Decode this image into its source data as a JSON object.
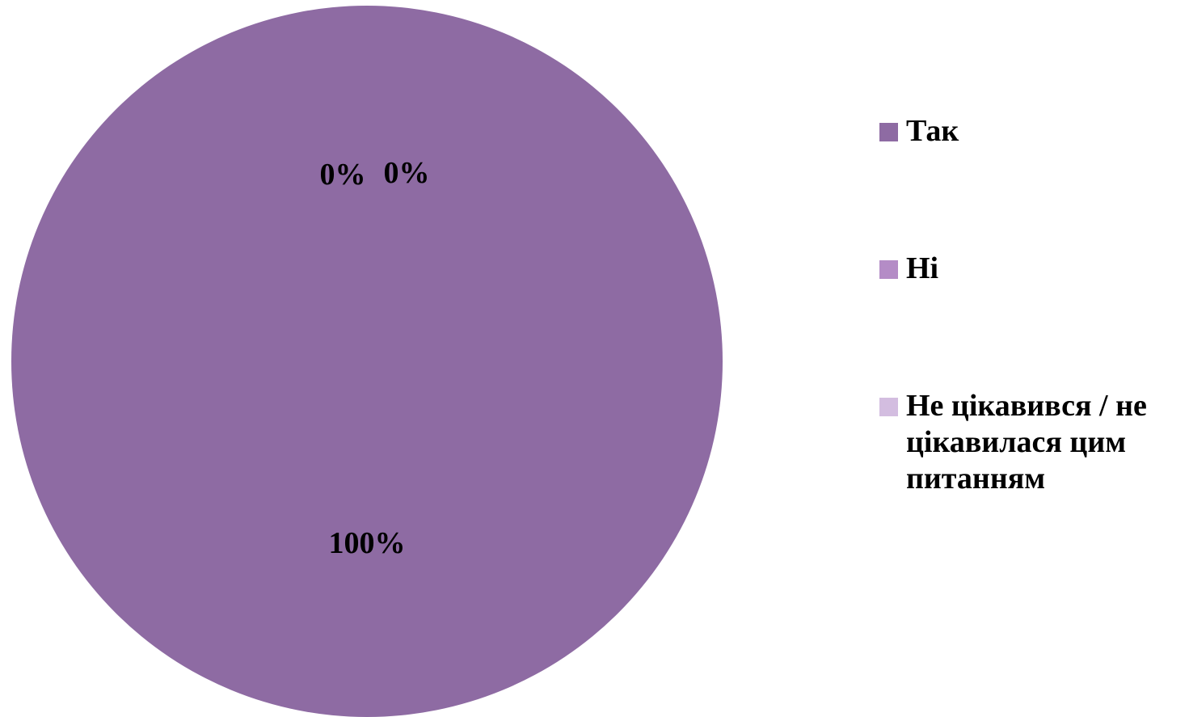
{
  "chart_data": {
    "type": "pie",
    "categories": [
      "Так",
      "Ні",
      "Не цікавився / не цікавилася цим питанням"
    ],
    "values": [
      100,
      0,
      0
    ],
    "data_labels": [
      "100%",
      "0%",
      "0%"
    ],
    "colors": [
      "#8e6ba3",
      "#b48cc6",
      "#d3bde0"
    ],
    "legend_position": "right",
    "title": ""
  }
}
